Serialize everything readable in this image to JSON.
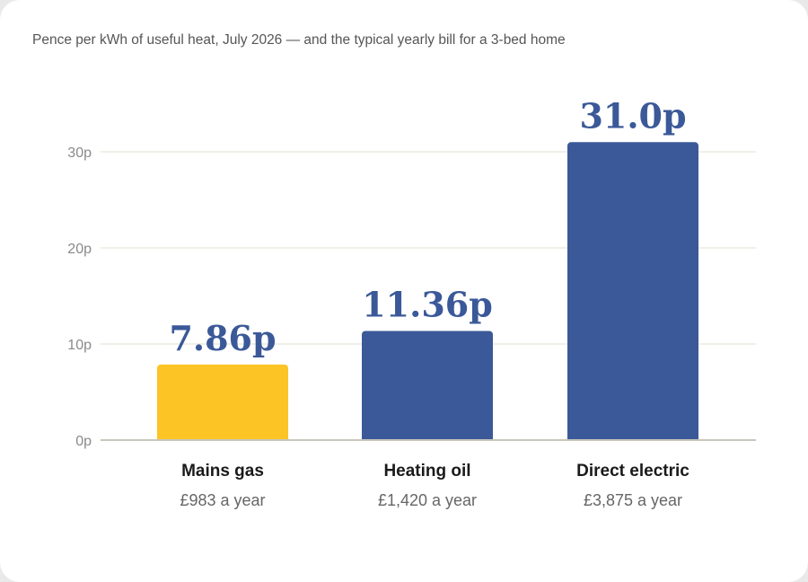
{
  "subtitle": "Pence per kWh of useful heat, July 2026 — and the typical yearly bill for a 3-bed home",
  "chart_data": {
    "type": "bar",
    "title": "",
    "xlabel": "",
    "ylabel": "",
    "ylim": [
      0,
      30
    ],
    "yticks": [
      0,
      10,
      20,
      30
    ],
    "ytick_labels": [
      "0p",
      "10p",
      "20p",
      "30p"
    ],
    "grid": true,
    "categories": [
      "Mains gas",
      "Heating oil",
      "Direct electric"
    ],
    "values": [
      7.86,
      11.36,
      31.0
    ],
    "value_labels": [
      "7.86p",
      "11.36p",
      "31.0p"
    ],
    "annual_bills": [
      "£983 a year",
      "£1,420 a year",
      "£3,875 a year"
    ],
    "bar_colors": [
      "#fdc426",
      "#3b5998",
      "#3b5998"
    ],
    "value_label_color": "#3b5998",
    "gridline_color": "#e8e6dc",
    "baseline_color": "#c9c6bb"
  }
}
